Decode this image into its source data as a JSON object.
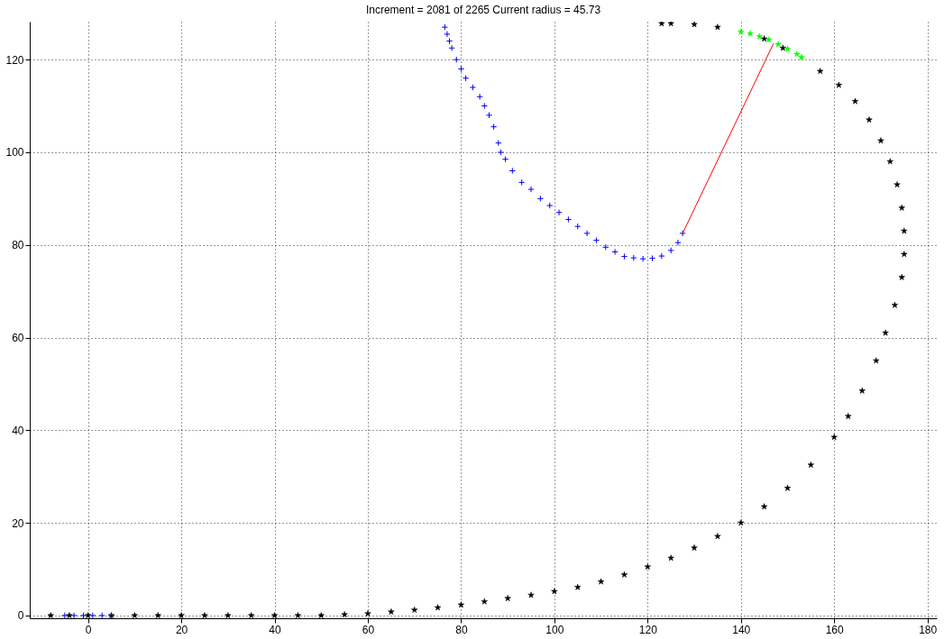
{
  "chart_data": {
    "type": "scatter",
    "title": "Increment = 2081 of 2265 Current radius = 45.73",
    "xlim": [
      -12.5,
      182
    ],
    "ylim": [
      -0.6,
      128.2
    ],
    "xticks": [
      0,
      20,
      40,
      60,
      80,
      100,
      120,
      140,
      160,
      180
    ],
    "yticks": [
      0,
      20,
      40,
      60,
      80,
      100,
      120
    ],
    "grid": true,
    "series": [
      {
        "marker": "star",
        "color": "#000000",
        "x": [
          -8,
          -4,
          0,
          5,
          10,
          15,
          20,
          25,
          30,
          35,
          40,
          45,
          50,
          55,
          60,
          65,
          70,
          75,
          80,
          85,
          90,
          95,
          100,
          105,
          110,
          115,
          120,
          125,
          130,
          135,
          140,
          145,
          150,
          155,
          160,
          163,
          166,
          169,
          171,
          173,
          174.5,
          175,
          175,
          174.5,
          173.5,
          172,
          170,
          167.5,
          164.5,
          161,
          157,
          149,
          145,
          135,
          130,
          125,
          123
        ],
        "values": [
          0,
          0,
          0,
          0,
          0,
          0,
          0,
          0,
          0,
          0,
          0,
          0,
          0,
          0.2,
          0.4,
          0.8,
          1.2,
          1.7,
          2.3,
          3,
          3.7,
          4.4,
          5.2,
          6.1,
          7.3,
          8.8,
          10.5,
          12.4,
          14.6,
          17.1,
          20,
          23.5,
          27.5,
          32.5,
          38.5,
          43,
          48.5,
          55,
          61,
          67,
          73,
          78,
          83,
          88,
          93,
          98,
          102.5,
          107,
          111,
          114.5,
          117.5,
          122.5,
          124.5,
          127,
          127.6,
          127.8,
          127.8
        ]
      },
      {
        "marker": "star",
        "color": "#00ff00",
        "x": [
          140,
          142,
          144,
          146,
          148,
          150,
          152,
          153
        ],
        "values": [
          126,
          125.6,
          125,
          124.3,
          123.3,
          122.3,
          121.2,
          120.5
        ]
      },
      {
        "marker": "cross",
        "color": "#0000ff",
        "x": [
          -5,
          -3,
          -1,
          1,
          3,
          5,
          76.5,
          77,
          77.5,
          78,
          79,
          80,
          81,
          82.5,
          84,
          85,
          86,
          87,
          88,
          88.5,
          89.5,
          91,
          93,
          95,
          97,
          99,
          101,
          103,
          105,
          107,
          109,
          111,
          113,
          115,
          117,
          119,
          121,
          123,
          125,
          126.5,
          127.5
        ],
        "values": [
          0,
          0,
          0,
          0,
          0,
          0,
          127,
          125.5,
          124,
          122.5,
          120,
          118,
          116,
          114,
          112,
          110,
          108,
          105.5,
          102,
          100,
          98.5,
          96,
          93.5,
          92,
          90,
          88.5,
          87,
          85.5,
          84,
          82.5,
          81,
          79.5,
          78.5,
          77.5,
          77.2,
          77,
          77.1,
          77.6,
          78.8,
          80.5,
          82.5
        ]
      },
      {
        "type": "line",
        "color": "#ff0000",
        "x": [
          127.5,
          147
        ],
        "values": [
          82.5,
          123.5
        ]
      }
    ]
  }
}
